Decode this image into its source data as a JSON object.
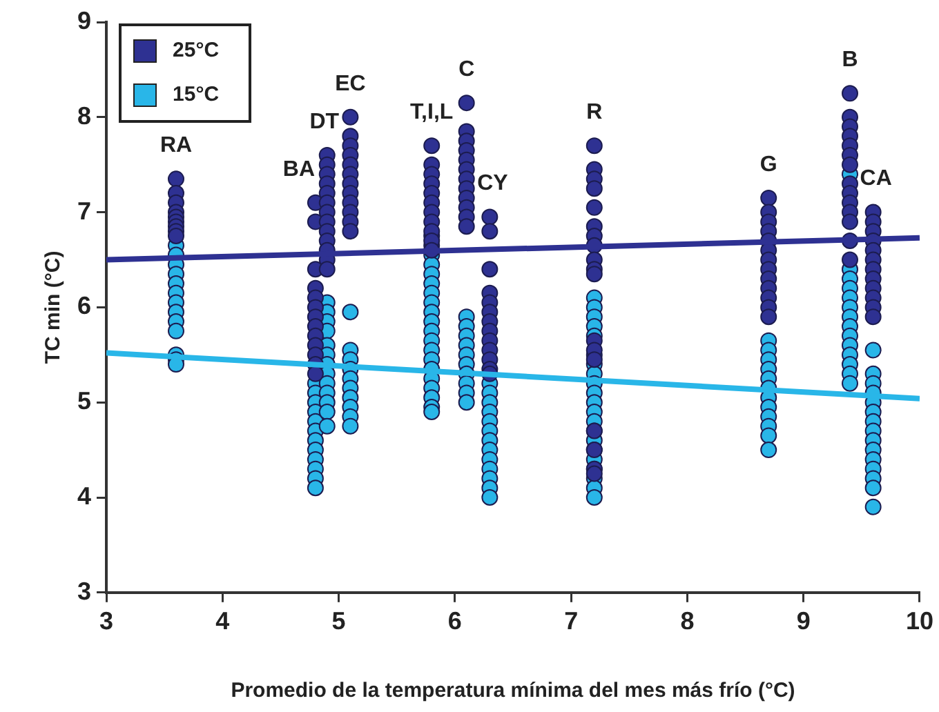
{
  "chart_data": {
    "type": "scatter",
    "xlabel": "Promedio de la temperatura mínima del mes más frío (°C)",
    "ylabel": "TC min (°C)",
    "xlim": [
      3,
      10
    ],
    "xticks": [
      3,
      4,
      5,
      6,
      7,
      8,
      9,
      10
    ],
    "ylim": [
      3,
      9
    ],
    "yticks": [
      3,
      4,
      5,
      6,
      7,
      8,
      9
    ],
    "grid": false,
    "legend": "top left",
    "marker": "circle",
    "series": [
      {
        "name": "25°C",
        "color": "#2e3192",
        "x": [
          3.6,
          3.6,
          3.6,
          3.6,
          3.6,
          3.6,
          3.6,
          3.6,
          3.6,
          4.8,
          4.8,
          4.8,
          4.8,
          4.8,
          4.8,
          4.8,
          4.8,
          4.8,
          4.8,
          4.8,
          4.8,
          4.8,
          4.9,
          4.9,
          4.9,
          4.9,
          4.9,
          4.9,
          4.9,
          4.9,
          4.9,
          4.9,
          4.9,
          4.9,
          4.9,
          5.1,
          5.1,
          5.1,
          5.1,
          5.1,
          5.1,
          5.1,
          5.1,
          5.1,
          5.1,
          5.1,
          5.1,
          5.8,
          5.8,
          5.8,
          5.8,
          5.8,
          5.8,
          5.8,
          5.8,
          5.8,
          5.8,
          5.8,
          6.1,
          6.1,
          6.1,
          6.1,
          6.1,
          6.1,
          6.1,
          6.1,
          6.1,
          6.1,
          6.1,
          6.1,
          6.3,
          6.3,
          6.3,
          6.3,
          6.3,
          6.3,
          6.3,
          6.3,
          6.3,
          6.3,
          6.3,
          6.3,
          6.3,
          7.2,
          7.2,
          7.2,
          7.2,
          7.2,
          7.2,
          7.2,
          7.2,
          7.2,
          7.2,
          7.2,
          7.2,
          7.2,
          7.2,
          7.2,
          7.2,
          7.2,
          7.2,
          8.7,
          8.7,
          8.7,
          8.7,
          8.7,
          8.7,
          8.7,
          8.7,
          8.7,
          8.7,
          8.7,
          8.7,
          8.7,
          9.4,
          9.4,
          9.4,
          9.4,
          9.4,
          9.4,
          9.4,
          9.4,
          9.4,
          9.4,
          9.4,
          9.4,
          9.4,
          9.4,
          9.6,
          9.6,
          9.6,
          9.6,
          9.6,
          9.6,
          9.6,
          9.6,
          9.6,
          9.6,
          9.6,
          9.6
        ],
        "values": [
          7.35,
          7.2,
          7.1,
          7.0,
          6.95,
          6.9,
          6.85,
          6.8,
          6.75,
          7.1,
          6.9,
          6.4,
          6.2,
          6.1,
          6.0,
          5.9,
          5.8,
          5.7,
          5.6,
          5.5,
          5.4,
          5.3,
          7.6,
          7.5,
          7.4,
          7.3,
          7.2,
          7.1,
          7.0,
          6.9,
          6.8,
          6.7,
          6.6,
          6.5,
          6.4,
          8.0,
          7.8,
          7.7,
          7.6,
          7.5,
          7.4,
          7.3,
          7.2,
          7.1,
          7.0,
          6.9,
          6.8,
          7.7,
          7.5,
          7.4,
          7.3,
          7.2,
          7.1,
          7.0,
          6.9,
          6.8,
          6.7,
          6.6,
          8.15,
          7.85,
          7.75,
          7.65,
          7.55,
          7.45,
          7.35,
          7.25,
          7.15,
          7.05,
          6.95,
          6.85,
          6.95,
          6.8,
          6.4,
          6.15,
          6.05,
          5.95,
          5.85,
          5.75,
          5.65,
          5.55,
          5.45,
          5.35,
          5.3,
          7.7,
          7.45,
          7.35,
          7.25,
          7.05,
          6.85,
          6.75,
          6.65,
          6.5,
          6.4,
          6.35,
          5.65,
          5.55,
          5.45,
          4.7,
          4.5,
          4.3,
          4.25,
          7.15,
          7.0,
          6.9,
          6.8,
          6.7,
          6.6,
          6.5,
          6.4,
          6.3,
          6.2,
          6.1,
          6.0,
          5.9,
          8.25,
          8.0,
          7.9,
          7.8,
          7.7,
          7.6,
          7.5,
          7.3,
          7.2,
          7.1,
          7.0,
          6.9,
          6.7,
          6.5,
          7.0,
          6.9,
          6.8,
          6.7,
          6.6,
          6.5,
          6.4,
          6.3,
          6.2,
          6.1,
          6.0,
          5.9
        ]
      },
      {
        "name": "15°C",
        "color": "#29b6e8",
        "x": [
          3.6,
          3.6,
          3.6,
          3.6,
          3.6,
          3.6,
          3.6,
          3.6,
          3.6,
          3.6,
          3.6,
          3.6,
          3.6,
          4.8,
          4.8,
          4.8,
          4.8,
          4.8,
          4.8,
          4.8,
          4.8,
          4.8,
          4.8,
          4.8,
          4.8,
          4.9,
          4.9,
          4.9,
          4.9,
          4.9,
          4.9,
          4.9,
          4.9,
          4.9,
          4.9,
          4.9,
          4.9,
          4.9,
          5.1,
          5.1,
          5.1,
          5.1,
          5.1,
          5.1,
          5.1,
          5.1,
          5.1,
          5.1,
          5.8,
          5.8,
          5.8,
          5.8,
          5.8,
          5.8,
          5.8,
          5.8,
          5.8,
          5.8,
          5.8,
          5.8,
          5.8,
          5.8,
          5.8,
          5.8,
          5.8,
          5.8,
          5.8,
          5.8,
          6.1,
          6.1,
          6.1,
          6.1,
          6.1,
          6.1,
          6.1,
          6.1,
          6.1,
          6.1,
          6.3,
          6.3,
          6.3,
          6.3,
          6.3,
          6.3,
          6.3,
          6.3,
          6.3,
          6.3,
          6.3,
          6.3,
          6.3,
          7.2,
          7.2,
          7.2,
          7.2,
          7.2,
          7.2,
          7.2,
          7.2,
          7.2,
          7.2,
          7.2,
          7.2,
          7.2,
          7.2,
          7.2,
          7.2,
          7.2,
          7.2,
          7.2,
          7.2,
          7.2,
          8.7,
          8.7,
          8.7,
          8.7,
          8.7,
          8.7,
          8.7,
          8.7,
          8.7,
          8.7,
          8.7,
          8.7,
          9.4,
          9.4,
          9.4,
          9.4,
          9.4,
          9.4,
          9.4,
          9.4,
          9.4,
          9.4,
          9.4,
          9.4,
          9.4,
          9.4,
          9.6,
          9.6,
          9.6,
          9.6,
          9.6,
          9.6,
          9.6,
          9.6,
          9.6,
          9.6,
          9.6,
          9.6,
          9.6,
          9.6,
          9.6
        ],
        "values": [
          6.65,
          6.55,
          6.45,
          6.35,
          6.25,
          6.15,
          6.05,
          5.95,
          5.85,
          5.75,
          5.5,
          5.45,
          5.4,
          5.2,
          5.1,
          5.0,
          4.9,
          4.8,
          4.7,
          4.6,
          4.5,
          4.4,
          4.3,
          4.2,
          4.1,
          6.05,
          5.95,
          5.85,
          5.75,
          5.6,
          5.5,
          5.4,
          5.3,
          5.2,
          5.1,
          5.0,
          4.9,
          4.75,
          5.95,
          5.55,
          5.45,
          5.35,
          5.25,
          5.15,
          5.05,
          4.95,
          4.85,
          4.75,
          6.75,
          6.65,
          6.55,
          6.45,
          6.35,
          6.25,
          6.15,
          6.05,
          5.95,
          5.85,
          5.75,
          5.65,
          5.55,
          5.45,
          5.35,
          5.25,
          5.15,
          5.05,
          4.95,
          4.9,
          5.9,
          5.8,
          5.7,
          5.6,
          5.5,
          5.4,
          5.3,
          5.2,
          5.1,
          5.0,
          5.2,
          5.1,
          5.0,
          4.9,
          4.8,
          4.7,
          4.6,
          4.5,
          4.4,
          4.3,
          4.2,
          4.1,
          4.0,
          6.1,
          6.0,
          5.9,
          5.8,
          5.7,
          5.5,
          5.4,
          5.3,
          5.2,
          5.1,
          5.0,
          4.9,
          4.8,
          4.7,
          4.6,
          4.5,
          4.4,
          4.3,
          4.2,
          4.1,
          4.0,
          5.65,
          5.55,
          5.45,
          5.35,
          5.25,
          5.15,
          5.05,
          4.95,
          4.85,
          4.75,
          4.65,
          4.5,
          7.4,
          6.4,
          6.3,
          6.2,
          6.1,
          6.0,
          5.9,
          5.8,
          5.7,
          5.6,
          5.5,
          5.4,
          5.3,
          5.2,
          5.55,
          5.3,
          5.2,
          5.1,
          5.0,
          4.9,
          4.8,
          4.7,
          4.6,
          4.5,
          4.4,
          4.3,
          4.2,
          4.1,
          3.9
        ]
      },
      {
        "type": "line",
        "marker": "none",
        "color": "#2e3192",
        "x": [
          3,
          10
        ],
        "values": [
          6.5,
          6.73
        ]
      },
      {
        "type": "line",
        "marker": "none",
        "color": "#29b6e8",
        "x": [
          3,
          10
        ],
        "values": [
          5.52,
          5.04
        ]
      }
    ],
    "annotations": [
      {
        "text": "RA",
        "x": 3.6,
        "y": 7.35
      },
      {
        "text": "BA",
        "x": 4.8,
        "y": 7.1
      },
      {
        "text": "DT",
        "x": 4.9,
        "y": 7.6
      },
      {
        "text": "EC",
        "x": 5.1,
        "y": 8.0
      },
      {
        "text": "T,I,L",
        "x": 5.8,
        "y": 7.7
      },
      {
        "text": "C",
        "x": 6.1,
        "y": 8.15
      },
      {
        "text": "CY",
        "x": 6.3,
        "y": 6.95
      },
      {
        "text": "R",
        "x": 7.2,
        "y": 7.7
      },
      {
        "text": "G",
        "x": 8.7,
        "y": 7.15
      },
      {
        "text": "B",
        "x": 9.4,
        "y": 8.25
      },
      {
        "text": "CA",
        "x": 9.6,
        "y": 7.0
      }
    ]
  }
}
